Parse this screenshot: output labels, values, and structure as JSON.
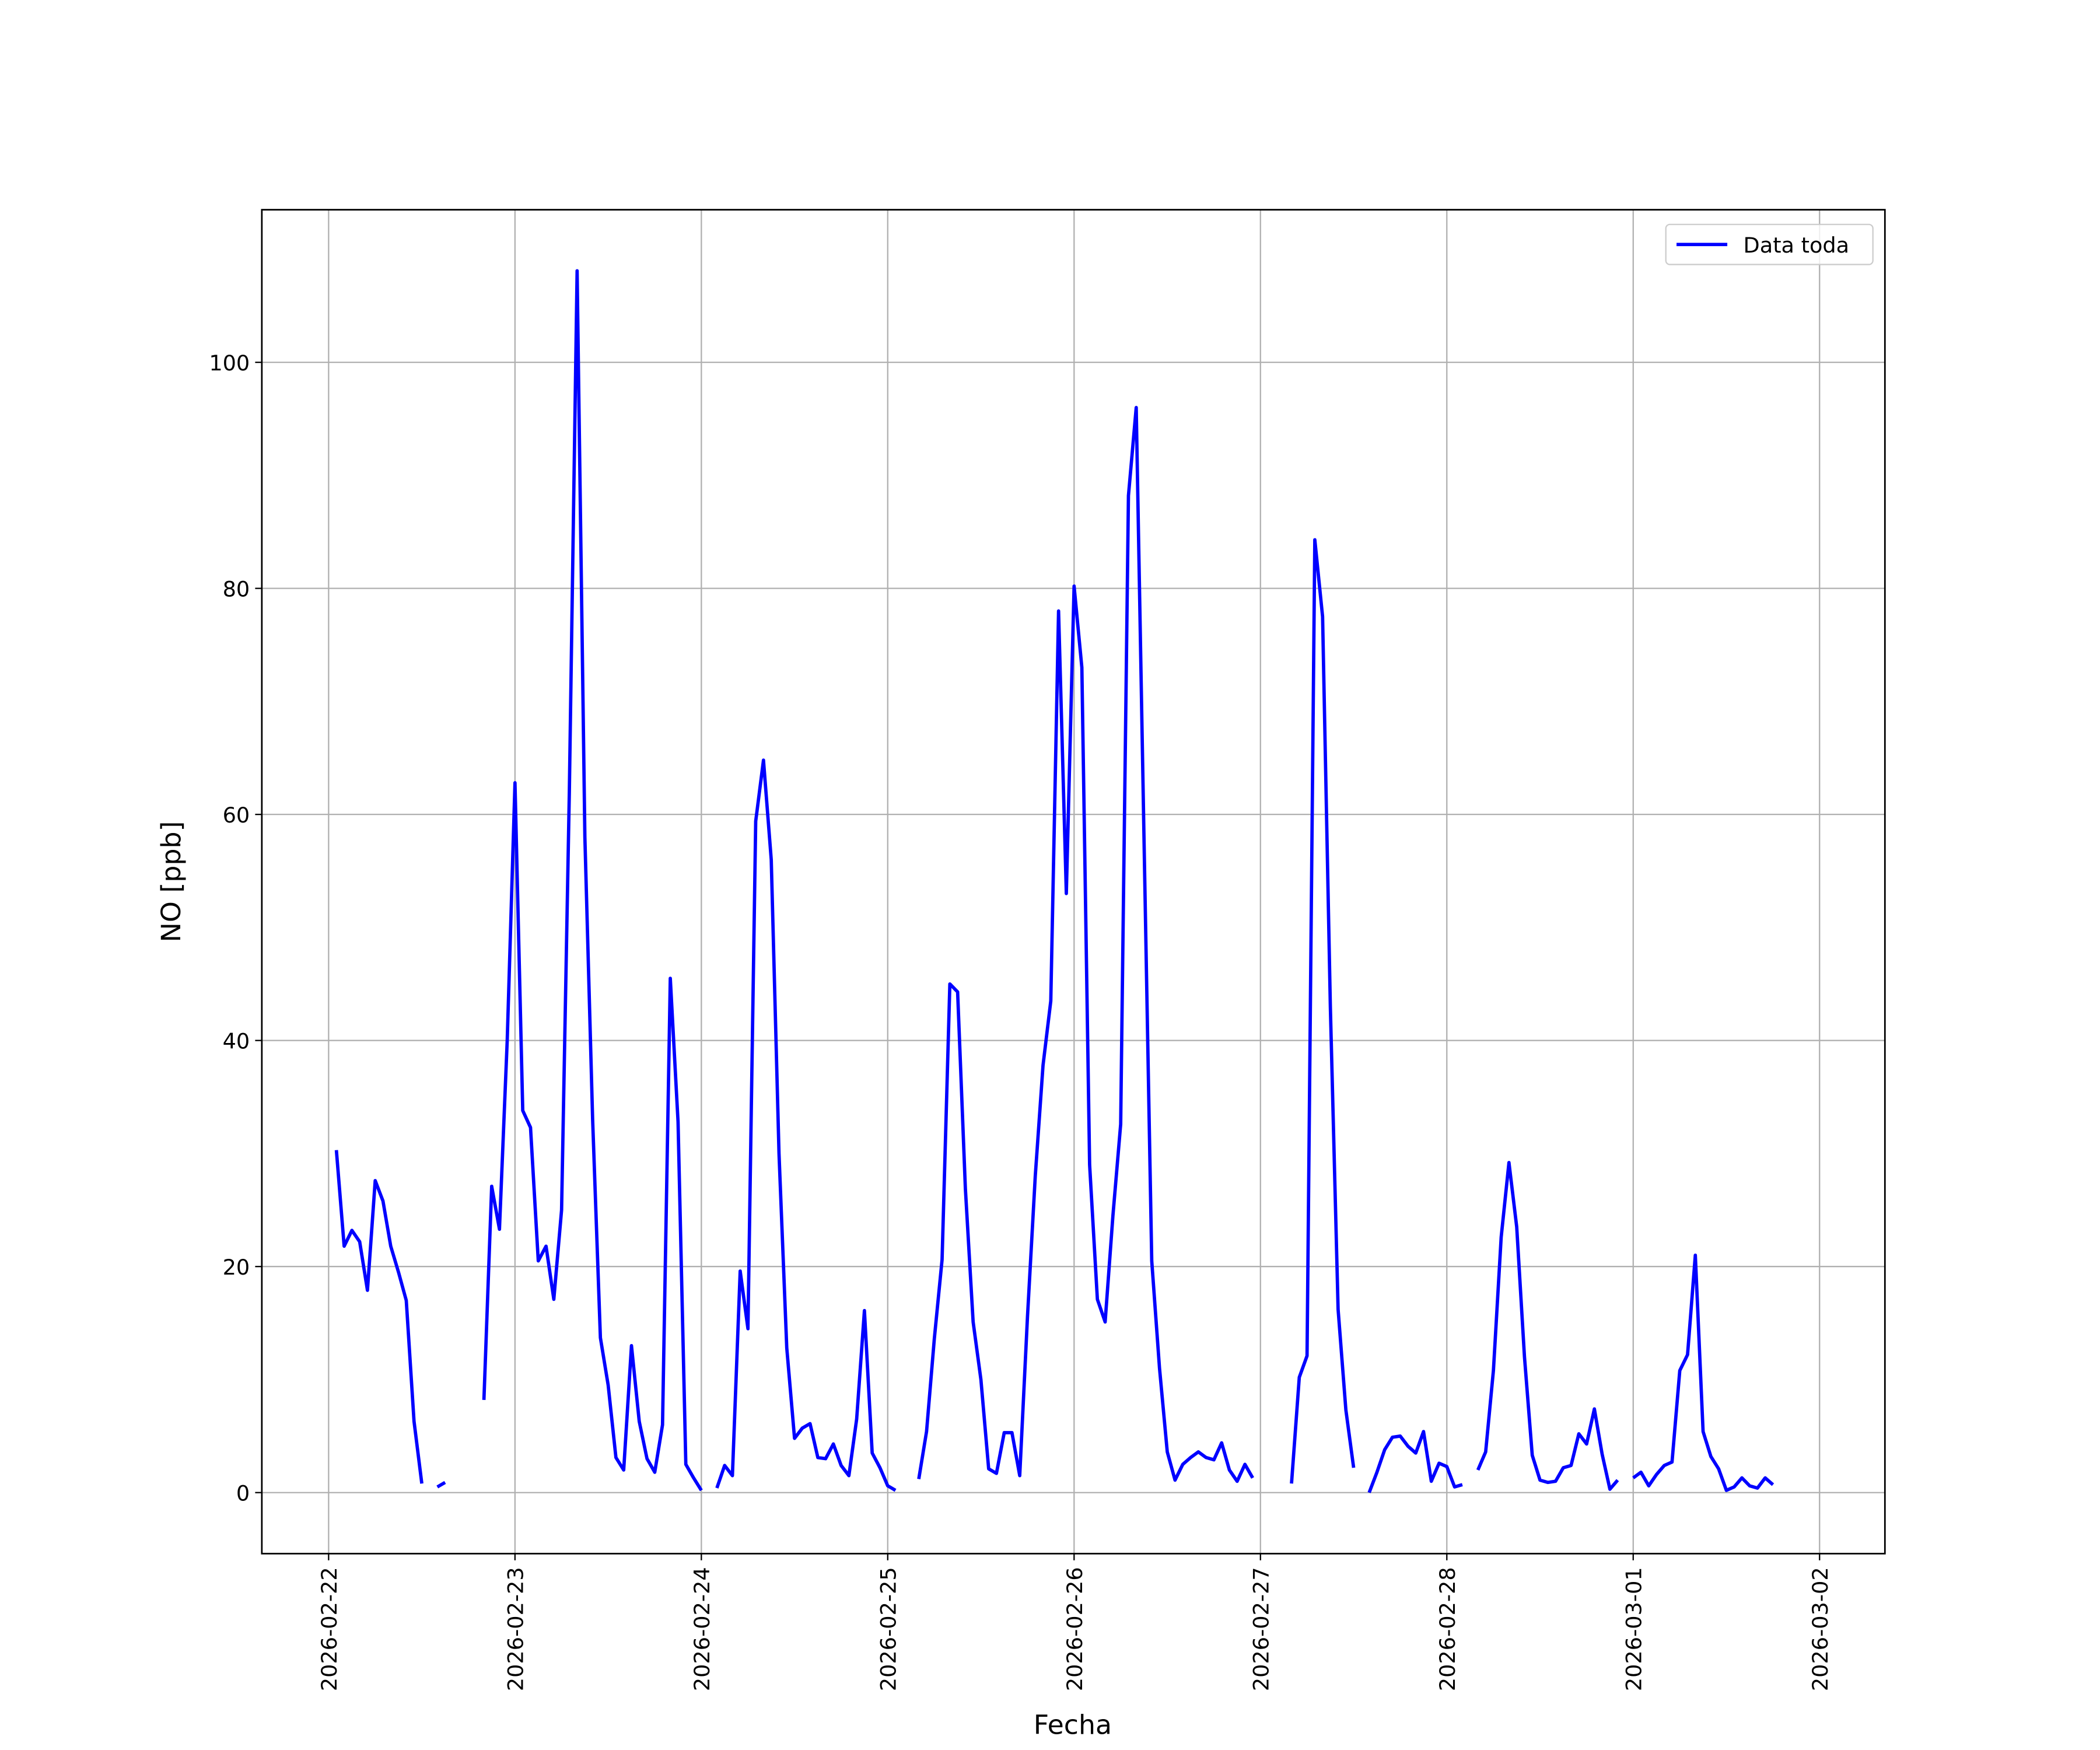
{
  "chart_data": {
    "type": "line",
    "xlabel": "Fecha",
    "ylabel": "NO [ppb]",
    "x": [
      "2026-02-22 01:00",
      "2026-02-22 02:00",
      "2026-02-22 03:00",
      "2026-02-22 04:00",
      "2026-02-22 05:00",
      "2026-02-22 06:00",
      "2026-02-22 07:00",
      "2026-02-22 08:00",
      "2026-02-22 09:00",
      "2026-02-22 10:00",
      "2026-02-22 11:00",
      "2026-02-22 12:00",
      "2026-02-22 13:00",
      "2026-02-22 14:00",
      "2026-02-22 15:00",
      "2026-02-22 16:00",
      "2026-02-22 17:00",
      "2026-02-22 18:00",
      "2026-02-22 19:00",
      "2026-02-22 20:00",
      "2026-02-22 21:00",
      "2026-02-22 22:00",
      "2026-02-22 23:00",
      "2026-02-23 00:00",
      "2026-02-23 01:00",
      "2026-02-23 02:00",
      "2026-02-23 03:00",
      "2026-02-23 04:00",
      "2026-02-23 05:00",
      "2026-02-23 06:00",
      "2026-02-23 07:00",
      "2026-02-23 08:00",
      "2026-02-23 09:00",
      "2026-02-23 10:00",
      "2026-02-23 11:00",
      "2026-02-23 12:00",
      "2026-02-23 13:00",
      "2026-02-23 14:00",
      "2026-02-23 15:00",
      "2026-02-23 16:00",
      "2026-02-23 17:00",
      "2026-02-23 18:00",
      "2026-02-23 19:00",
      "2026-02-23 20:00",
      "2026-02-23 21:00",
      "2026-02-23 22:00",
      "2026-02-23 23:00",
      "2026-02-24 00:00",
      "2026-02-24 01:00",
      "2026-02-24 02:00",
      "2026-02-24 03:00",
      "2026-02-24 04:00",
      "2026-02-24 05:00",
      "2026-02-24 06:00",
      "2026-02-24 07:00",
      "2026-02-24 08:00",
      "2026-02-24 09:00",
      "2026-02-24 10:00",
      "2026-02-24 11:00",
      "2026-02-24 12:00",
      "2026-02-24 13:00",
      "2026-02-24 14:00",
      "2026-02-24 15:00",
      "2026-02-24 16:00",
      "2026-02-24 17:00",
      "2026-02-24 18:00",
      "2026-02-24 19:00",
      "2026-02-24 20:00",
      "2026-02-24 21:00",
      "2026-02-24 22:00",
      "2026-02-24 23:00",
      "2026-02-25 00:00",
      "2026-02-25 01:00",
      "2026-02-25 02:00",
      "2026-02-25 03:00",
      "2026-02-25 04:00",
      "2026-02-25 05:00",
      "2026-02-25 06:00",
      "2026-02-25 07:00",
      "2026-02-25 08:00",
      "2026-02-25 09:00",
      "2026-02-25 10:00",
      "2026-02-25 11:00",
      "2026-02-25 12:00",
      "2026-02-25 13:00",
      "2026-02-25 14:00",
      "2026-02-25 15:00",
      "2026-02-25 16:00",
      "2026-02-25 17:00",
      "2026-02-25 18:00",
      "2026-02-25 19:00",
      "2026-02-25 20:00",
      "2026-02-25 21:00",
      "2026-02-25 22:00",
      "2026-02-25 23:00",
      "2026-02-26 00:00",
      "2026-02-26 01:00",
      "2026-02-26 02:00",
      "2026-02-26 03:00",
      "2026-02-26 04:00",
      "2026-02-26 05:00",
      "2026-02-26 06:00",
      "2026-02-26 07:00",
      "2026-02-26 08:00",
      "2026-02-26 09:00",
      "2026-02-26 10:00",
      "2026-02-26 11:00",
      "2026-02-26 12:00",
      "2026-02-26 13:00",
      "2026-02-26 14:00",
      "2026-02-26 15:00",
      "2026-02-26 16:00",
      "2026-02-26 17:00",
      "2026-02-26 18:00",
      "2026-02-26 19:00",
      "2026-02-26 20:00",
      "2026-02-26 21:00",
      "2026-02-26 22:00",
      "2026-02-26 23:00",
      "2026-02-27 00:00",
      "2026-02-27 01:00",
      "2026-02-27 02:00",
      "2026-02-27 03:00",
      "2026-02-27 04:00",
      "2026-02-27 05:00",
      "2026-02-27 06:00",
      "2026-02-27 07:00",
      "2026-02-27 08:00",
      "2026-02-27 09:00",
      "2026-02-27 10:00",
      "2026-02-27 11:00",
      "2026-02-27 12:00",
      "2026-02-27 13:00",
      "2026-02-27 14:00",
      "2026-02-27 15:00",
      "2026-02-27 16:00",
      "2026-02-27 17:00",
      "2026-02-27 18:00",
      "2026-02-27 19:00",
      "2026-02-27 20:00",
      "2026-02-27 21:00",
      "2026-02-27 22:00",
      "2026-02-27 23:00",
      "2026-02-28 00:00",
      "2026-02-28 01:00",
      "2026-02-28 02:00",
      "2026-02-28 03:00",
      "2026-02-28 04:00",
      "2026-02-28 05:00",
      "2026-02-28 06:00",
      "2026-02-28 07:00",
      "2026-02-28 08:00",
      "2026-02-28 09:00",
      "2026-02-28 10:00",
      "2026-02-28 11:00",
      "2026-02-28 12:00",
      "2026-02-28 13:00",
      "2026-02-28 14:00",
      "2026-02-28 15:00",
      "2026-02-28 16:00",
      "2026-02-28 17:00",
      "2026-02-28 18:00",
      "2026-02-28 19:00",
      "2026-02-28 20:00",
      "2026-02-28 21:00",
      "2026-02-28 22:00",
      "2026-02-28 23:00",
      "2026-03-01 00:00",
      "2026-03-01 01:00",
      "2026-03-01 02:00",
      "2026-03-01 03:00",
      "2026-03-01 04:00",
      "2026-03-01 05:00",
      "2026-03-01 06:00",
      "2026-03-01 07:00",
      "2026-03-01 08:00",
      "2026-03-01 09:00",
      "2026-03-01 10:00",
      "2026-03-01 11:00",
      "2026-03-01 12:00",
      "2026-03-01 13:00",
      "2026-03-01 14:00",
      "2026-03-01 15:00",
      "2026-03-01 16:00",
      "2026-03-01 17:00",
      "2026-03-01 18:00"
    ],
    "series": [
      {
        "name": "Data toda",
        "color": "#0000ff",
        "values": [
          30.3,
          21.8,
          23.2,
          22.2,
          17.9,
          27.6,
          25.8,
          21.8,
          19.5,
          17.0,
          6.3,
          0.8,
          null,
          0.5,
          0.9,
          null,
          null,
          null,
          null,
          8.2,
          27.1,
          23.3,
          40.0,
          62.8,
          33.8,
          32.3,
          20.5,
          21.8,
          17.1,
          25.0,
          62.0,
          108.1,
          58.0,
          33.0,
          13.7,
          9.5,
          3.1,
          2.0,
          13.0,
          6.3,
          3.0,
          1.8,
          6.0,
          45.5,
          32.8,
          2.5,
          1.3,
          0.2,
          null,
          0.4,
          2.4,
          1.5,
          19.6,
          14.5,
          59.4,
          64.8,
          56.0,
          30.0,
          12.8,
          4.8,
          5.7,
          6.1,
          3.1,
          3.0,
          4.3,
          2.4,
          1.5,
          6.5,
          16.1,
          3.5,
          2.2,
          0.6,
          0.2,
          null,
          null,
          1.2,
          5.4,
          13.6,
          20.6,
          45.0,
          44.3,
          26.9,
          15.1,
          10.0,
          2.1,
          1.7,
          5.3,
          5.3,
          1.5,
          15.6,
          28.0,
          37.8,
          43.5,
          78.0,
          53.0,
          80.2,
          73.0,
          29.0,
          17.1,
          15.1,
          24.5,
          32.6,
          88.2,
          96.0,
          58.0,
          20.5,
          11.0,
          3.6,
          1.1,
          2.5,
          3.1,
          3.6,
          3.1,
          2.9,
          4.4,
          2.0,
          1.0,
          2.5,
          1.3,
          null,
          null,
          null,
          null,
          0.8,
          10.2,
          12.1,
          84.3,
          77.5,
          43.0,
          16.2,
          7.3,
          2.2,
          null,
          0.0,
          1.8,
          3.8,
          4.9,
          5.0,
          4.1,
          3.5,
          5.4,
          1.0,
          2.6,
          2.3,
          0.5,
          0.7,
          null,
          2.0,
          3.6,
          10.8,
          22.6,
          29.2,
          23.5,
          12.0,
          3.3,
          1.1,
          0.9,
          1.0,
          2.2,
          2.4,
          5.2,
          4.3,
          7.4,
          3.4,
          0.3,
          1.1,
          null,
          1.3,
          1.8,
          0.6,
          1.6,
          2.4,
          2.7,
          10.8,
          12.2,
          21.0,
          5.4,
          3.2,
          2.1,
          0.2,
          0.5,
          1.3,
          0.6,
          0.4,
          1.3,
          0.7
        ]
      }
    ],
    "xlim": [
      "2026-02-21 15:24",
      "2026-03-02 08:25"
    ],
    "xticks": [
      "2026-02-22",
      "2026-02-23",
      "2026-02-24",
      "2026-02-25",
      "2026-02-26",
      "2026-02-27",
      "2026-02-28",
      "2026-03-01",
      "2026-03-02"
    ],
    "ylim": [
      -5.4,
      113.5
    ],
    "yticks": [
      0,
      20,
      40,
      60,
      80,
      100
    ],
    "grid": true,
    "legend": "upper right"
  }
}
